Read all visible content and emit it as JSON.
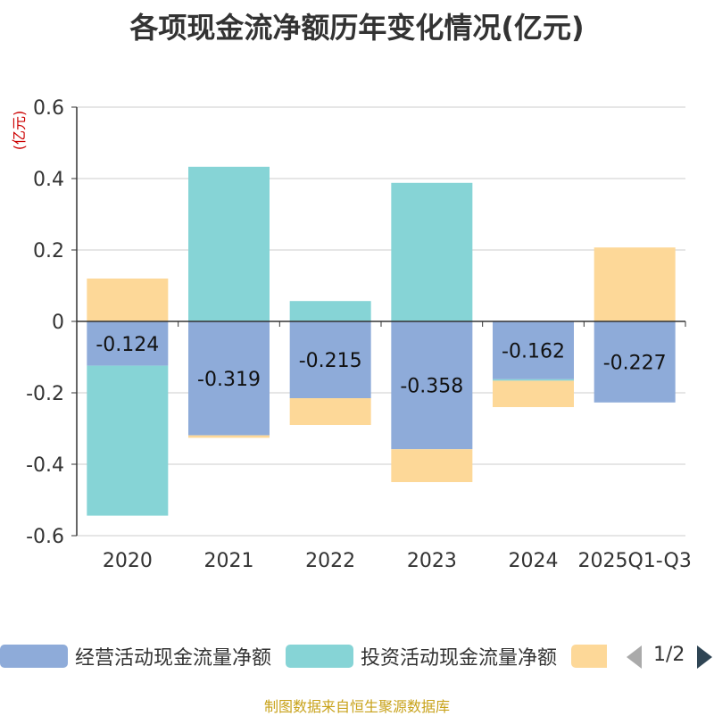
{
  "chart_data": {
    "type": "bar",
    "stacked": true,
    "title": "各项现金流净额历年变化情况(亿元)",
    "ylabel": "(亿元)",
    "ylim": [
      -0.6,
      0.6
    ],
    "yticks": [
      0.6,
      0.4,
      0.2,
      0,
      -0.2,
      -0.4,
      -0.6
    ],
    "ytick_labels": [
      "0.6",
      "0.4",
      "0.2",
      "0",
      "-0.2",
      "-0.4",
      "-0.6"
    ],
    "grid": true,
    "legend_position": "bottom",
    "categories": [
      "2020",
      "2021",
      "2022",
      "2023",
      "2024",
      "2025Q1-Q3"
    ],
    "series": [
      {
        "name": "经营活动现金流量净额",
        "color": "#8eabd9",
        "values": [
          -0.124,
          -0.319,
          -0.215,
          -0.358,
          -0.162,
          -0.227
        ],
        "labels": [
          "-0.124",
          "-0.319",
          "-0.215",
          "-0.358",
          "-0.162",
          "-0.227"
        ]
      },
      {
        "name": "投资活动现金流量净额",
        "color": "#86d4d6",
        "values": [
          -0.42,
          0.433,
          0.057,
          0.388,
          -0.004,
          0
        ]
      },
      {
        "name": "",
        "color": "#fdd898",
        "values": [
          0.12,
          -0.007,
          -0.075,
          -0.092,
          -0.074,
          0.207
        ]
      }
    ]
  },
  "legend": {
    "items": [
      {
        "label": "经营活动现金流量净额",
        "color": "#8eabd9"
      },
      {
        "label": "投资活动现金流量净额",
        "color": "#86d4d6"
      },
      {
        "label": "",
        "color": "#fdd898"
      }
    ],
    "page_indicator": "1/2",
    "prev_icon": "triangle-left-icon",
    "next_icon": "triangle-right-icon"
  },
  "source_note": "制图数据来自恒生聚源数据库",
  "colors": {
    "axis": "#333333",
    "grid": "#cccccc",
    "ylabel": "#cc0000",
    "source": "#c8a21a"
  }
}
